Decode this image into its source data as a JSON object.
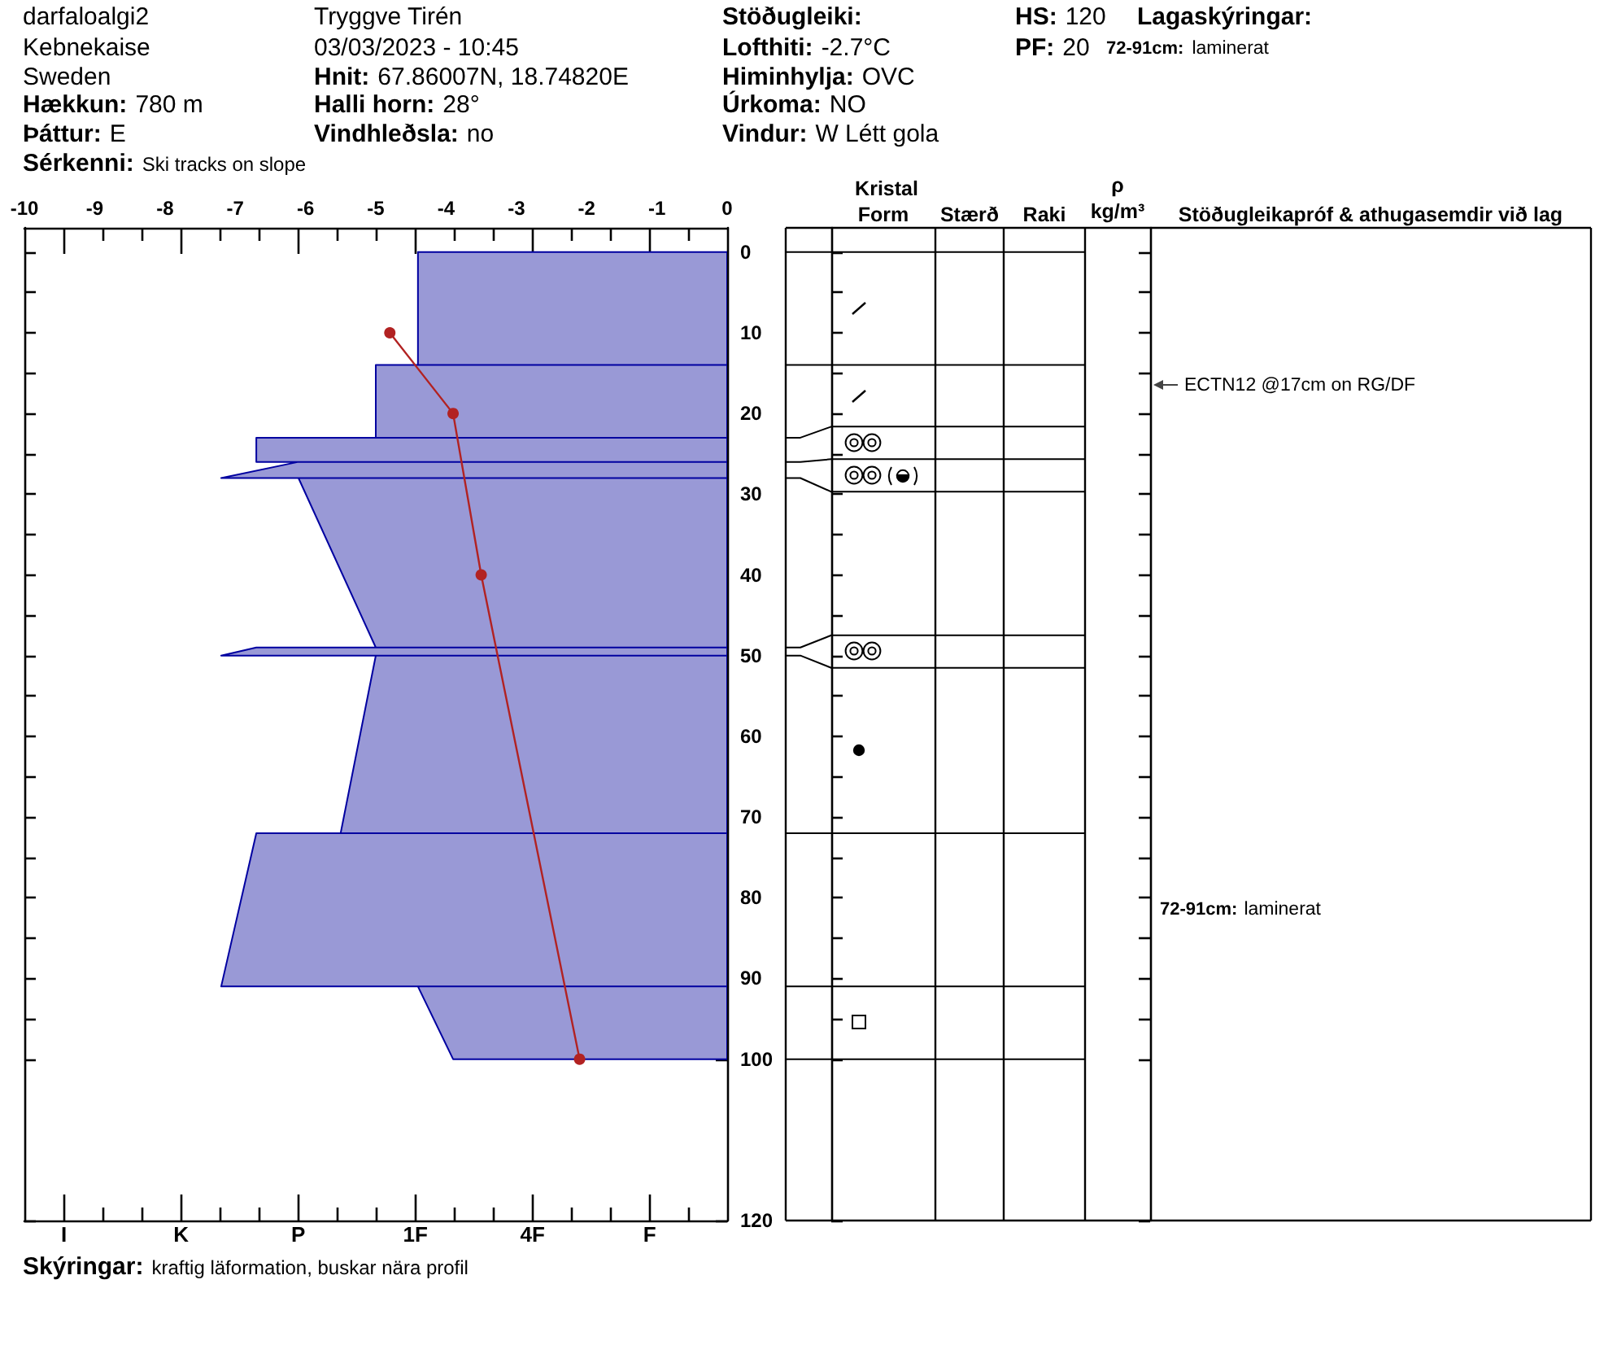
{
  "chart_data": {
    "type": "line",
    "categories": [
      "I",
      null,
      null,
      "K",
      null,
      null,
      "P",
      null,
      null,
      "1F",
      null,
      null,
      "4F",
      null,
      null,
      "F",
      null
    ],
    "series": [
      {
        "type": "area",
        "color": "#9999d6",
        "axis": "x2",
        "x": [
          0,
          -4.4,
          -4.4,
          0,
          -5.0,
          -5.0,
          0,
          -6.7,
          -6.7,
          0,
          -6.1,
          -7.2,
          0,
          -6.1,
          -5.0,
          0,
          -6.7,
          -7.2,
          0,
          -5.0,
          -5.5,
          0,
          -6.7,
          -7.2,
          0,
          -4.4,
          -3.9,
          0
        ],
        "values": [
          0,
          0,
          14,
          14,
          14,
          23,
          23,
          23,
          26,
          26,
          26,
          28,
          28,
          28,
          49,
          49,
          49,
          50,
          50,
          50,
          72,
          72,
          72,
          91,
          91,
          91,
          100,
          100
        ]
      },
      {
        "type": "line",
        "color": "#b22222",
        "axis": "x2",
        "marker": "circle",
        "x": [
          -4.8,
          -3.9,
          -3.5,
          -2.1
        ],
        "values": [
          10,
          20,
          40,
          100
        ]
      }
    ],
    "x2lim": [
      -10,
      0
    ],
    "x2ticks": [
      -10,
      -9,
      -8,
      -7,
      -6,
      -5,
      -4,
      -3,
      -2,
      -1,
      0
    ],
    "ylim": [
      120,
      -3
    ],
    "yticks": [
      0,
      {
        "value": 5,
        "label": null
      },
      10,
      {
        "value": 15,
        "label": null
      },
      20,
      {
        "value": 25,
        "label": null
      },
      30,
      {
        "value": 35,
        "label": null
      },
      40,
      {
        "value": 45,
        "label": null
      },
      50,
      {
        "value": 55,
        "label": null
      },
      60,
      {
        "value": 65,
        "label": null
      },
      70,
      {
        "value": 75,
        "label": null
      },
      80,
      {
        "value": 85,
        "label": null
      },
      90,
      {
        "value": 95,
        "label": null
      },
      100,
      120
    ],
    "annotations": [
      "darfaloalgi2",
      "Kebnekaise",
      "Sweden",
      "Hækkun: 780 m",
      "Þáttur: E",
      "Sérkenni: Ski tracks on slope",
      "Tryggve Tirén",
      "03/03/2023 - 10:45",
      "Hnit: 67.86007N, 18.74820E",
      "Halli horn: 28°",
      "Vindhleðsla: no",
      "Stöðugleiki:",
      "Lofthiti: -2.7°C",
      "Himinhylja: OVC",
      "Úrkoma: NO",
      "Vindur: W Létt gola",
      "HS: 120",
      "PF: 20",
      "Lagaskýringar:",
      "72-91cm: laminerat",
      "Skýringar: kraftig läformation, buskar nära profil",
      "Kristal",
      "Form",
      "Stærð",
      "Raki",
      "ρ kg/m³",
      "Stöðugleikapróf & athugasemdir við lag",
      "ECTN12 @17cm on RG/DF",
      "72-91cm: laminerat"
    ]
  }
}
